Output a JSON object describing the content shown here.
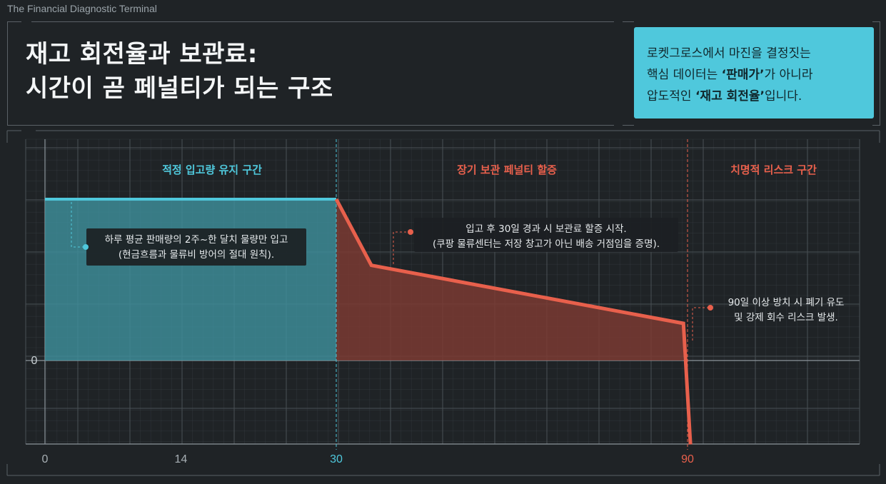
{
  "app_title": "The Financial Diagnostic Terminal",
  "header": {
    "title_line1": "재고 회전율과 보관료:",
    "title_line2": "시간이 곧 페널티가 되는 구조"
  },
  "callout": {
    "line1": "로켓그로스에서 마진을 결정짓는",
    "line2_pre": "핵심 데이터는 ",
    "line2_bold": "‘판매가’",
    "line2_post": "가 아니라",
    "line3_pre": "압도적인 ",
    "line3_bold": "‘재고 회전율’",
    "line3_post": "입니다."
  },
  "colors": {
    "background": "#1f2326",
    "cyan": "#4fc8dc",
    "cyan_fill": "#3e8f9b",
    "red": "#e8604c",
    "red_fill": "#7a3a33",
    "grid": "#3a4045"
  },
  "chart_data": {
    "type": "line",
    "x_ticks": [
      0,
      14,
      30,
      90
    ],
    "y_ticks": [
      0
    ],
    "xlim": [
      0,
      91
    ],
    "grid": true,
    "zones": [
      {
        "label": "적정 입고량 유지 구간",
        "from": 0,
        "to": 30,
        "color": "#4fc8dc"
      },
      {
        "label": "장기 보관 페널티 할증",
        "from": 30,
        "to": 90,
        "color": "#e8604c"
      },
      {
        "label": "치명적 리스크 구간",
        "from": 90,
        "to": 91,
        "color": "#e8604c"
      }
    ],
    "series": [
      {
        "color": "#4fc8dc",
        "points": [
          [
            0,
            100
          ],
          [
            30,
            100
          ]
        ]
      },
      {
        "color": "#e8604c",
        "points": [
          [
            30,
            100
          ],
          [
            36,
            59
          ],
          [
            89.3,
            23
          ],
          [
            90.5,
            -52
          ]
        ]
      }
    ],
    "annotations": [
      {
        "lines": [
          "하루 평균 판매량의 2주~한 달치 물량만 입고",
          "(현금흐름과 물류비 방어의 절대 원칙)."
        ]
      },
      {
        "lines": [
          "입고 후 30일 경과 시 보관료 할증 시작.",
          "(쿠팡 물류센터는 저장 창고가 아닌 배송 거점임을 증명)."
        ]
      },
      {
        "lines": [
          "90일 이상 방치 시 폐기 유도",
          "및 강제 회수 리스크 발생."
        ]
      }
    ]
  }
}
